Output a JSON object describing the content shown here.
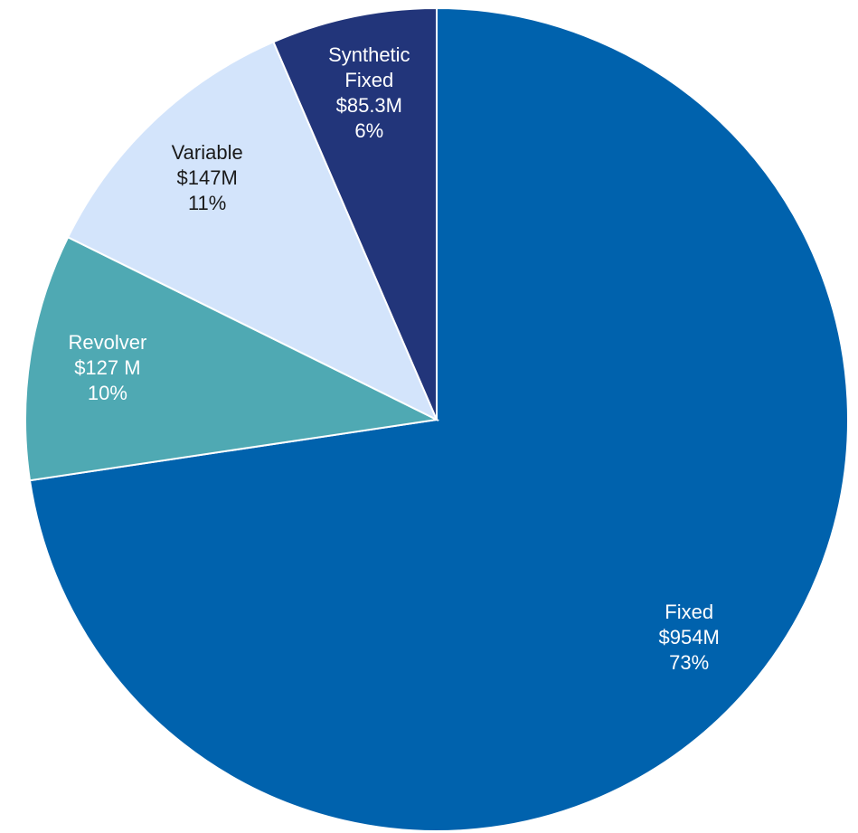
{
  "chart_data": {
    "type": "pie",
    "categories": [
      "Fixed",
      "Revolver",
      "Variable",
      "Synthetic Fixed"
    ],
    "values": [
      954,
      127,
      147,
      85.3
    ],
    "value_labels": [
      "$954M",
      "$127 M",
      "$147M",
      "$85.3M"
    ],
    "percentages": [
      73,
      10,
      11,
      6
    ],
    "percentage_labels": [
      "73%",
      "10%",
      "11%",
      "6%"
    ],
    "colors": [
      "#0062ad",
      "#4fa9b3",
      "#d3e4fb",
      "#22357a"
    ],
    "label_colors": [
      "#ffffff",
      "#ffffff",
      "#1a1a1a",
      "#ffffff"
    ]
  }
}
